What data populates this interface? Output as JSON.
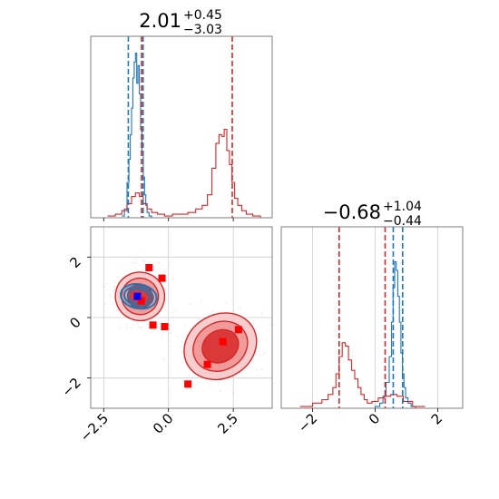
{
  "chart_data": [
    {
      "type": "histogram",
      "panel": "top-left",
      "title": {
        "value": "2.01",
        "upper": "+0.45",
        "lower": "−3.03"
      },
      "xlim": [
        -3.0,
        4.0
      ],
      "grid": false,
      "series": [
        {
          "color": "#1f77b4",
          "x": [
            -1.75,
            -1.65,
            -1.55,
            -1.5,
            -1.45,
            -1.4,
            -1.35,
            -1.3,
            -1.25,
            -1.2,
            -1.15,
            -1.1,
            -1.05,
            -1.0,
            -0.95,
            -0.9,
            -0.85,
            -0.8,
            -0.7,
            -0.6
          ],
          "y": [
            0.01,
            0.05,
            0.2,
            0.33,
            0.47,
            0.62,
            0.79,
            0.88,
            0.93,
            0.76,
            0.86,
            0.7,
            0.5,
            0.37,
            0.23,
            0.13,
            0.07,
            0.03,
            0.01,
            0.0
          ]
        },
        {
          "color": "#d62728",
          "x": [
            -2.2,
            -1.9,
            -1.7,
            -1.5,
            -1.35,
            -1.2,
            -1.05,
            -0.9,
            -0.75,
            -0.55,
            -0.3,
            0.0,
            0.3,
            0.6,
            0.9,
            1.2,
            1.4,
            1.6,
            1.75,
            1.9,
            2.0,
            2.1,
            2.2,
            2.3,
            2.4,
            2.5,
            2.6,
            2.75,
            2.9,
            3.1,
            3.4,
            3.7
          ],
          "y": [
            0.01,
            0.02,
            0.04,
            0.08,
            0.12,
            0.14,
            0.12,
            0.08,
            0.05,
            0.03,
            0.02,
            0.01,
            0.02,
            0.02,
            0.03,
            0.05,
            0.07,
            0.13,
            0.28,
            0.42,
            0.47,
            0.46,
            0.5,
            0.38,
            0.3,
            0.2,
            0.11,
            0.07,
            0.04,
            0.02,
            0.01,
            0.0
          ]
        }
      ],
      "vlines": [
        {
          "x": -1.55,
          "color": "#1f77b4"
        },
        {
          "x": -0.98,
          "color": "#1f77b4"
        },
        {
          "x": -1.04,
          "color": "#d62728"
        },
        {
          "x": 2.46,
          "color": "#d62728"
        }
      ]
    },
    {
      "type": "contour",
      "panel": "bottom-left",
      "xlim": [
        -3.0,
        4.0
      ],
      "ylim": [
        -3.0,
        3.0
      ],
      "xticks": [
        "−2.5",
        "0.0",
        "2.5"
      ],
      "yticks": [
        "−2",
        "0",
        "2"
      ],
      "grid": true,
      "red_markers": [
        {
          "x": -0.75,
          "y": 1.65
        },
        {
          "x": -0.25,
          "y": 1.3
        },
        {
          "x": -1.05,
          "y": 0.55
        },
        {
          "x": -0.6,
          "y": -0.25
        },
        {
          "x": -0.15,
          "y": -0.3
        },
        {
          "x": 2.1,
          "y": -0.8
        },
        {
          "x": 2.7,
          "y": -0.4
        },
        {
          "x": 1.5,
          "y": -1.55
        },
        {
          "x": 0.75,
          "y": -2.2
        }
      ],
      "blue_markers": [
        {
          "x": -1.2,
          "y": 0.7
        }
      ],
      "blobs": [
        {
          "color": "#d62728",
          "cx": -1.1,
          "cy": 0.7,
          "rx": 0.95,
          "ry": 0.8,
          "rot": -15
        },
        {
          "color": "#d62728",
          "cx": 2.0,
          "cy": -0.95,
          "rx": 1.45,
          "ry": 1.05,
          "rot": 30
        },
        {
          "color": "#1f77b4",
          "cx": -1.15,
          "cy": 0.7,
          "rx": 0.7,
          "ry": 0.4,
          "rot": -10
        }
      ]
    },
    {
      "type": "histogram",
      "panel": "bottom-right",
      "title": {
        "value": "−0.68",
        "upper": "+1.04",
        "lower": "−0.44"
      },
      "xlim": [
        -3.0,
        2.8
      ],
      "xticks": [
        "−2",
        "0",
        "2"
      ],
      "grid": true,
      "series": [
        {
          "color": "#1f77b4",
          "x": [
            -0.1,
            0.1,
            0.2,
            0.3,
            0.4,
            0.5,
            0.55,
            0.6,
            0.65,
            0.7,
            0.75,
            0.8,
            0.85,
            0.9,
            0.95,
            1.0,
            1.1,
            1.2,
            1.4,
            1.6
          ],
          "y": [
            0.0,
            0.01,
            0.03,
            0.07,
            0.15,
            0.3,
            0.5,
            0.7,
            0.85,
            0.8,
            0.65,
            0.5,
            0.32,
            0.2,
            0.12,
            0.06,
            0.03,
            0.01,
            0.0,
            0.0
          ]
        },
        {
          "color": "#d62728",
          "x": [
            -2.2,
            -1.8,
            -1.6,
            -1.4,
            -1.3,
            -1.2,
            -1.1,
            -1.0,
            -0.9,
            -0.8,
            -0.7,
            -0.6,
            -0.5,
            -0.4,
            -0.3,
            -0.2,
            0.0,
            0.2,
            0.4,
            0.6,
            0.8,
            1.0,
            1.4
          ],
          "y": [
            0.01,
            0.03,
            0.05,
            0.08,
            0.12,
            0.2,
            0.3,
            0.38,
            0.36,
            0.28,
            0.22,
            0.17,
            0.12,
            0.08,
            0.05,
            0.03,
            0.04,
            0.06,
            0.07,
            0.08,
            0.07,
            0.04,
            0.01
          ]
        }
      ],
      "vlines": [
        {
          "x": -1.15,
          "color": "#d62728"
        },
        {
          "x": 0.32,
          "color": "#d62728"
        },
        {
          "x": 0.58,
          "color": "#1f77b4"
        },
        {
          "x": 0.88,
          "color": "#1f77b4"
        }
      ]
    }
  ]
}
